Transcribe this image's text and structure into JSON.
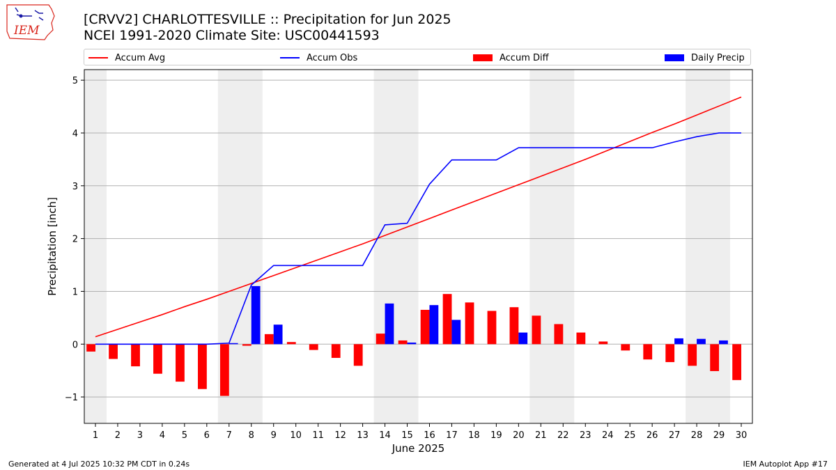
{
  "header": {
    "title_line1": "[CRVV2] CHARLOTTESVILLE :: Precipitation for Jun 2025",
    "title_line2": "NCEI 1991-2020 Climate Site: USC00441593"
  },
  "logo": {
    "text": "IEM",
    "icon": "iowa-state-map-icon",
    "color": "#d9261c"
  },
  "footer": {
    "left": "Generated at 4 Jul 2025 10:32 PM CDT in 0.24s",
    "right": "IEM Autoplot App #17"
  },
  "chart_data": {
    "type": "bar",
    "xlabel": "June 2025",
    "ylabel": "Precipitation [inch]",
    "ylim": [
      -1.5,
      5.2
    ],
    "xlim": [
      0.5,
      30.5
    ],
    "yticks": [
      -1,
      0,
      1,
      2,
      3,
      4,
      5
    ],
    "ytick_labels": [
      "−1",
      "0",
      "1",
      "2",
      "3",
      "4",
      "5"
    ],
    "grid": "horizontal",
    "legend_placement": "top",
    "weekend_shading": [
      [
        0.5,
        1.5
      ],
      [
        6.5,
        8.5
      ],
      [
        13.5,
        15.5
      ],
      [
        20.5,
        22.5
      ],
      [
        27.5,
        29.5
      ]
    ],
    "x": [
      1,
      2,
      3,
      4,
      5,
      6,
      7,
      8,
      9,
      10,
      11,
      12,
      13,
      14,
      15,
      16,
      17,
      18,
      19,
      20,
      21,
      22,
      23,
      24,
      25,
      26,
      27,
      28,
      29,
      30
    ],
    "series": [
      {
        "name": "Accum Avg",
        "kind": "line",
        "color": "#ff0000",
        "values": [
          0.14,
          0.28,
          0.42,
          0.56,
          0.71,
          0.85,
          1.0,
          1.15,
          1.3,
          1.45,
          1.6,
          1.75,
          1.9,
          2.06,
          2.22,
          2.38,
          2.54,
          2.7,
          2.86,
          3.02,
          3.18,
          3.34,
          3.5,
          3.67,
          3.84,
          4.01,
          4.17,
          4.34,
          4.51,
          4.68
        ]
      },
      {
        "name": "Accum Obs",
        "kind": "line",
        "color": "#0000ff",
        "values": [
          0,
          0,
          0,
          0,
          0,
          0,
          0.02,
          1.12,
          1.49,
          1.49,
          1.49,
          1.49,
          1.49,
          2.26,
          2.29,
          3.03,
          3.49,
          3.49,
          3.49,
          3.72,
          3.72,
          3.72,
          3.72,
          3.72,
          3.72,
          3.72,
          3.83,
          3.93,
          4.0,
          4.0
        ]
      },
      {
        "name": "Accum Diff",
        "kind": "bar",
        "color": "#ff0000",
        "values": [
          -0.14,
          -0.28,
          -0.42,
          -0.56,
          -0.71,
          -0.85,
          -0.98,
          -0.03,
          0.19,
          0.04,
          -0.11,
          -0.26,
          -0.41,
          0.2,
          0.07,
          0.65,
          0.95,
          0.79,
          0.63,
          0.7,
          0.54,
          0.38,
          0.22,
          0.05,
          -0.12,
          -0.29,
          -0.34,
          -0.41,
          -0.51,
          -0.68
        ]
      },
      {
        "name": "Daily Precip",
        "kind": "bar",
        "color": "#0000ff",
        "values": [
          0,
          0,
          0,
          0,
          0,
          0,
          0.02,
          1.1,
          0.37,
          0,
          0,
          0,
          0,
          0.77,
          0.03,
          0.74,
          0.46,
          0,
          0,
          0.22,
          0,
          0,
          0,
          0,
          0,
          0,
          0.11,
          0.1,
          0.07,
          0
        ]
      }
    ]
  }
}
